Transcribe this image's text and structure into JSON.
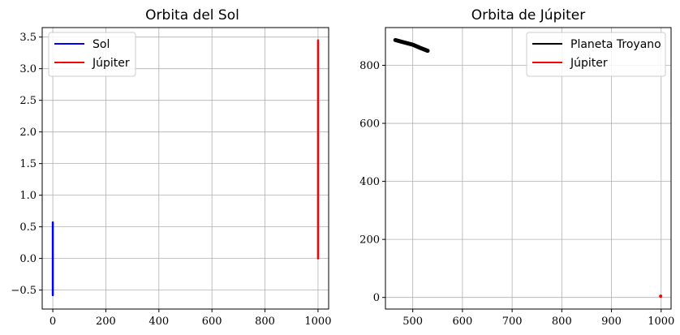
{
  "chart_data": [
    {
      "type": "line",
      "title": "Orbita del Sol",
      "xlabel": "",
      "ylabel": "",
      "xlim": [
        -40,
        1040
      ],
      "ylim": [
        -0.8,
        3.65
      ],
      "xticks": [
        0,
        200,
        400,
        600,
        800,
        1000
      ],
      "xtick_labels": [
        "0",
        "200",
        "400",
        "600",
        "800",
        "1000"
      ],
      "yticks": [
        -0.5,
        0.0,
        0.5,
        1.0,
        1.5,
        2.0,
        2.5,
        3.0,
        3.5
      ],
      "ytick_labels": [
        "−0.5",
        "0.0",
        "0.5",
        "1.0",
        "1.5",
        "2.0",
        "2.5",
        "3.0",
        "3.5"
      ],
      "grid": true,
      "legend_position": "top-left",
      "series": [
        {
          "name": "Sol",
          "color": "#0000ff",
          "x": [
            0,
            0
          ],
          "y": [
            -0.58,
            0.57
          ]
        },
        {
          "name": "Júpiter",
          "color": "#ff0000",
          "x": [
            1000,
            1000
          ],
          "y": [
            0.0,
            3.45
          ]
        }
      ]
    },
    {
      "type": "line",
      "title": "Orbita de Júpiter",
      "xlabel": "",
      "ylabel": "",
      "xlim": [
        445,
        1020
      ],
      "ylim": [
        -40,
        930
      ],
      "xticks": [
        500,
        600,
        700,
        800,
        900,
        1000
      ],
      "xtick_labels": [
        "500",
        "600",
        "700",
        "800",
        "900",
        "1000"
      ],
      "yticks": [
        0,
        200,
        400,
        600,
        800
      ],
      "ytick_labels": [
        "0",
        "200",
        "400",
        "600",
        "800"
      ],
      "grid": true,
      "legend_position": "top-right",
      "series": [
        {
          "name": "Planeta Troyano",
          "color": "#000000",
          "x": [
            465,
            480,
            500,
            515,
            530
          ],
          "y": [
            887,
            880,
            871,
            860,
            850
          ]
        },
        {
          "name": "Júpiter",
          "color": "#ff0000",
          "x": [
            999,
            999
          ],
          "y": [
            3,
            6
          ]
        }
      ]
    }
  ]
}
